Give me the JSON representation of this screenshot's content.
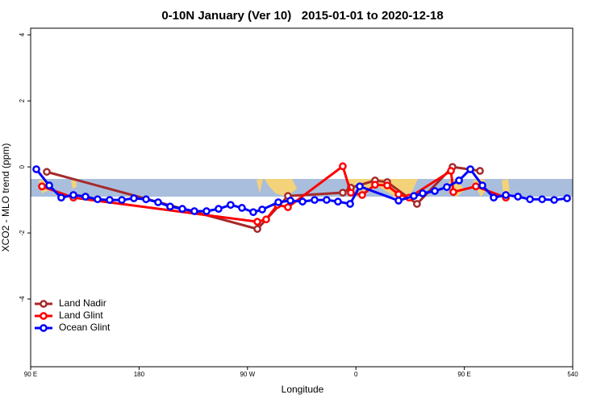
{
  "chart_data": {
    "type": "line",
    "title": "0-10N January (Ver 10)   2015-01-01 to 2020-12-18",
    "x_label": "Longitude",
    "y_label": "XCO2 - MLO trend (ppm)",
    "xlim": [
      90,
      540
    ],
    "ylim": [
      -6.05,
      4.2
    ],
    "xticks": [
      {
        "value": 90,
        "label": "90 E"
      },
      180,
      {
        "value": 270,
        "label": "90 W"
      },
      {
        "value": 360,
        "label": "0"
      },
      {
        "value": 450,
        "label": "90 E"
      },
      540
    ],
    "yticks": [
      -4,
      -2,
      0,
      2,
      4
    ],
    "legend": "bottomleft",
    "series": [
      {
        "name": "Land Nadir",
        "color": "#a52a2a",
        "x": [
          103.4,
          278.2,
          303.6,
          349.1,
          355.8,
          375.9,
          386,
          410.7,
          440.2,
          463
        ],
        "values": [
          -0.15,
          -1.88,
          -0.88,
          -0.78,
          -0.63,
          -0.41,
          -0.46,
          -1.12,
          0.0,
          -0.12
        ]
      },
      {
        "name": "Land Glint",
        "color": "#ff0000",
        "x": [
          99.4,
          125.5,
          278.2,
          285.5,
          294.9,
          303.6,
          349.1,
          355.8,
          365.2,
          375.9,
          386,
          395.4,
          404.1,
          438.9,
          440.9,
          459.6,
          484.5
        ],
        "values": [
          -0.59,
          -0.93,
          -1.66,
          -1.59,
          -1.15,
          -1.22,
          0.02,
          -0.78,
          -0.85,
          -0.54,
          -0.56,
          -0.83,
          -0.93,
          -0.12,
          -0.76,
          -0.59,
          -0.93
        ]
      },
      {
        "name": "Ocean Glint",
        "color": "#0000ff",
        "x": [
          94.7,
          105.4,
          115.4,
          125.5,
          135.5,
          145.6,
          155.6,
          165.7,
          175.7,
          185.8,
          195.8,
          205.8,
          215.9,
          225.9,
          236,
          246,
          256,
          265.4,
          274.8,
          282.2,
          295.6,
          305.6,
          315.7,
          325.7,
          335.7,
          345.1,
          355.2,
          363.2,
          395.4,
          408.1,
          415.4,
          425.5,
          435.5,
          445.6,
          455,
          465,
          474.4,
          484.5,
          494.5,
          504.5,
          514.6,
          524.6,
          535.3
        ],
        "values": [
          -0.07,
          -0.56,
          -0.93,
          -0.85,
          -0.9,
          -0.98,
          -1.0,
          -1.0,
          -0.95,
          -0.98,
          -1.07,
          -1.2,
          -1.27,
          -1.34,
          -1.34,
          -1.27,
          -1.15,
          -1.24,
          -1.37,
          -1.29,
          -1.07,
          -1.02,
          -1.05,
          -1.0,
          -1.0,
          -1.05,
          -1.12,
          -0.59,
          -1.02,
          -0.88,
          -0.8,
          -0.73,
          -0.61,
          -0.41,
          -0.07,
          -0.56,
          -0.93,
          -0.85,
          -0.9,
          -0.98,
          -0.98,
          -1.0,
          -0.95
        ]
      }
    ]
  }
}
